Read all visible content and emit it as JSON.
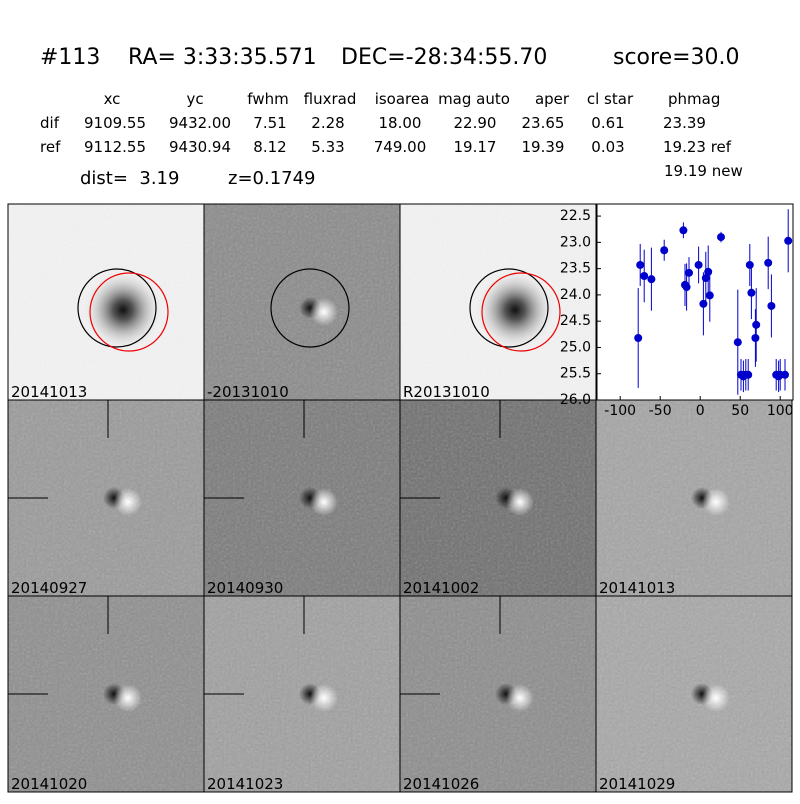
{
  "header": {
    "id": "#113",
    "ra": "RA= 3:33:35.571",
    "dec": "DEC=-28:34:55.70",
    "score": "score=30.0"
  },
  "table": {
    "columns": [
      "xc",
      "yc",
      "fwhm",
      "fluxrad",
      "isoarea",
      "mag auto",
      "aper",
      "cl star",
      "phmag"
    ],
    "rows": [
      [
        "dif",
        "9109.55",
        "9432.00",
        "7.51",
        "2.28",
        "18.00",
        "22.90",
        "23.65",
        "0.61",
        "23.39"
      ],
      [
        "ref",
        "9112.55",
        "9430.94",
        "8.12",
        "5.33",
        "749.00",
        "19.17",
        "19.39",
        "0.03",
        "19.23 ref"
      ]
    ],
    "extra": "19.19 new"
  },
  "dist": "dist=  3.19",
  "z": "z=0.1749",
  "panels": [
    "20141013",
    "-20131010",
    "R20131010",
    null,
    "20140927",
    "20140930",
    "20141002",
    "20141013",
    "20141020",
    "20141023",
    "20141026",
    "20141029"
  ],
  "lightcurve": {
    "type": "scatter",
    "color": "#0000cc",
    "x": [
      -77.5,
      -75,
      -70,
      -61,
      -45,
      -21,
      -19,
      -17,
      -14,
      -2,
      4,
      7,
      10,
      12,
      26,
      47,
      51,
      54,
      57,
      60,
      62,
      64,
      69,
      70,
      85,
      89,
      95,
      98,
      100,
      106,
      110
    ],
    "values": [
      24.82,
      23.43,
      23.64,
      23.7,
      23.15,
      22.77,
      23.81,
      23.85,
      23.58,
      23.43,
      24.17,
      23.68,
      23.56,
      24.01,
      22.9,
      24.9,
      25.52,
      25.55,
      25.52,
      25.52,
      23.43,
      23.96,
      24.82,
      24.57,
      23.39,
      24.21,
      25.52,
      25.55,
      25.52,
      25.52,
      22.97
    ],
    "errors": [
      0.95,
      0.4,
      0.5,
      0.6,
      0.2,
      0.15,
      0.4,
      0.45,
      0.3,
      0.35,
      0.6,
      0.5,
      0.5,
      0.5,
      0.1,
      1.0,
      0.3,
      0.3,
      0.3,
      0.3,
      0.4,
      0.5,
      0.55,
      0.7,
      0.5,
      0.6,
      0.3,
      0.3,
      0.3,
      0.3,
      0.6
    ],
    "xlim": [
      -129,
      116
    ],
    "ylim": [
      26.0,
      22.27
    ],
    "xticks": [
      -100,
      -50,
      0,
      50,
      100
    ],
    "yticks": [
      22.5,
      {
        "value": 23.0,
        "label": "23.0"
      },
      23.5,
      {
        "value": 24.0,
        "label": "24.0"
      },
      24.5,
      {
        "value": 25.0,
        "label": "25.0"
      },
      25.5,
      {
        "value": 26.0,
        "label": "26.0"
      }
    ]
  }
}
